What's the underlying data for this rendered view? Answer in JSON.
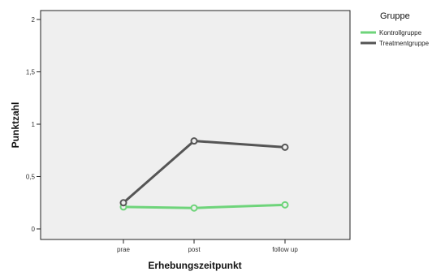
{
  "chart_data": {
    "type": "line",
    "title": "",
    "xlabel": "Erhebungszeitpunkt",
    "ylabel": "Punktzahl",
    "categories": [
      "prae",
      "post",
      "follow up"
    ],
    "ylim": [
      0,
      2
    ],
    "yticks": [
      0,
      0.5,
      1,
      1.5,
      2
    ],
    "ytick_labels": [
      "0",
      "0,5",
      "1",
      "1,5",
      "2"
    ],
    "grid": false,
    "legend_title": "Gruppe",
    "legend_position": "top-right",
    "series": [
      {
        "name": "Kontrollgruppe",
        "color": "#6ed47a",
        "values": [
          0.21,
          0.2,
          0.23
        ]
      },
      {
        "name": "Treatmentgruppe",
        "color": "#555555",
        "values": [
          0.25,
          0.84,
          0.78
        ]
      }
    ]
  }
}
